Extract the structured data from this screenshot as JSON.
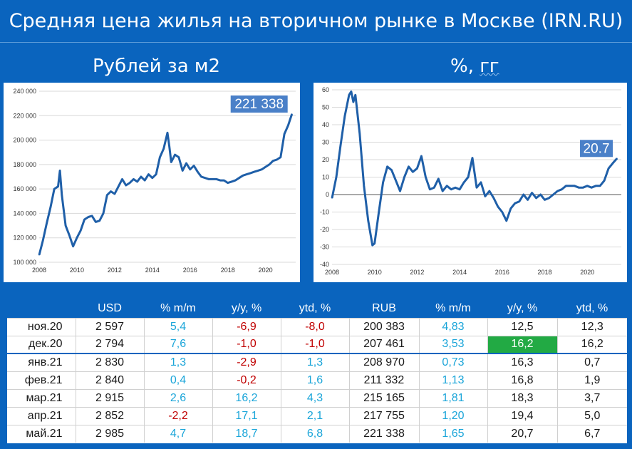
{
  "title": "Средняя цена жилья на вторичном рынке в Москве (IRN.RU)",
  "subtitle_left": "Рублей за м2",
  "subtitle_right_prefix": "%, ",
  "subtitle_right_unit": "гг",
  "colors": {
    "background": "#0a64be",
    "line": "#1f5fa8",
    "label_box": "#4a80c8",
    "positive": "#1aa5d9",
    "negative": "#c00000",
    "highlight": "#22aa44"
  },
  "chart_data": [
    {
      "type": "line",
      "title": "",
      "annotation": "221 338",
      "xlim": [
        2008,
        2021.6
      ],
      "ylim": [
        100000,
        240000
      ],
      "x_ticks": [
        "2008",
        "2010",
        "2012",
        "2014",
        "2016",
        "2018",
        "2020"
      ],
      "y_ticks": [
        "240 000",
        "220 000",
        "200 000",
        "180 000",
        "160 000",
        "140 000",
        "120 000",
        "100 000"
      ],
      "grid": true,
      "x": [
        2008.0,
        2008.2,
        2008.4,
        2008.6,
        2008.8,
        2009.0,
        2009.1,
        2009.2,
        2009.4,
        2009.6,
        2009.8,
        2010.0,
        2010.2,
        2010.4,
        2010.6,
        2010.8,
        2011.0,
        2011.2,
        2011.4,
        2011.6,
        2011.8,
        2012.0,
        2012.2,
        2012.4,
        2012.6,
        2012.8,
        2013.0,
        2013.2,
        2013.4,
        2013.6,
        2013.8,
        2014.0,
        2014.2,
        2014.4,
        2014.6,
        2014.8,
        2014.9,
        2015.0,
        2015.2,
        2015.4,
        2015.6,
        2015.8,
        2016.0,
        2016.2,
        2016.4,
        2016.6,
        2016.8,
        2017.0,
        2017.2,
        2017.4,
        2017.6,
        2017.8,
        2018.0,
        2018.2,
        2018.4,
        2018.6,
        2018.8,
        2019.0,
        2019.2,
        2019.4,
        2019.6,
        2019.8,
        2020.0,
        2020.2,
        2020.4,
        2020.6,
        2020.8,
        2021.0,
        2021.2,
        2021.4
      ],
      "y": [
        106000,
        118000,
        132000,
        145000,
        160000,
        162000,
        175000,
        155000,
        130000,
        122000,
        113000,
        120000,
        126000,
        135000,
        137000,
        138000,
        133000,
        134000,
        140000,
        155000,
        158000,
        156000,
        162000,
        168000,
        163000,
        165000,
        168000,
        166000,
        170000,
        167000,
        172000,
        169000,
        172000,
        186000,
        193000,
        206000,
        195000,
        182000,
        188000,
        186000,
        175000,
        181000,
        176000,
        179000,
        174000,
        170000,
        169000,
        168000,
        168000,
        168000,
        167000,
        167000,
        165000,
        166000,
        167000,
        169000,
        171000,
        172000,
        173000,
        174000,
        175000,
        176000,
        178000,
        180000,
        183000,
        184000,
        186000,
        205000,
        212000,
        221338
      ]
    },
    {
      "type": "line",
      "title": "",
      "annotation": "20.7",
      "xlim": [
        2008,
        2021.6
      ],
      "ylim": [
        -40,
        60
      ],
      "x_ticks": [
        "2008",
        "2010",
        "2012",
        "2014",
        "2016",
        "2018",
        "2020"
      ],
      "y_ticks": [
        "60",
        "50",
        "40",
        "30",
        "20",
        "10",
        "0",
        "-10",
        "-20",
        "-30",
        "-40"
      ],
      "grid": true,
      "x": [
        2008.0,
        2008.2,
        2008.4,
        2008.6,
        2008.8,
        2008.9,
        2009.0,
        2009.1,
        2009.3,
        2009.5,
        2009.7,
        2009.9,
        2010.0,
        2010.2,
        2010.4,
        2010.6,
        2010.8,
        2011.0,
        2011.2,
        2011.4,
        2011.6,
        2011.8,
        2012.0,
        2012.2,
        2012.4,
        2012.6,
        2012.8,
        2013.0,
        2013.2,
        2013.4,
        2013.6,
        2013.8,
        2014.0,
        2014.2,
        2014.4,
        2014.6,
        2014.8,
        2015.0,
        2015.2,
        2015.4,
        2015.6,
        2015.8,
        2016.0,
        2016.2,
        2016.4,
        2016.6,
        2016.8,
        2017.0,
        2017.2,
        2017.4,
        2017.6,
        2017.8,
        2018.0,
        2018.2,
        2018.4,
        2018.6,
        2018.8,
        2019.0,
        2019.2,
        2019.4,
        2019.6,
        2019.8,
        2020.0,
        2020.2,
        2020.4,
        2020.6,
        2020.8,
        2021.0,
        2021.2,
        2021.4
      ],
      "y": [
        -2,
        10,
        28,
        45,
        57,
        59,
        53,
        57,
        35,
        5,
        -15,
        -29,
        -28,
        -10,
        7,
        16,
        14,
        8,
        2,
        10,
        16,
        13,
        15,
        22,
        10,
        3,
        4,
        9,
        2,
        5,
        3,
        4,
        3,
        7,
        10,
        21,
        4,
        7,
        -1,
        2,
        -2,
        -7,
        -10,
        -15,
        -8,
        -5,
        -4,
        0,
        -3,
        1,
        -2,
        0,
        -3,
        -2,
        0,
        2,
        3,
        5,
        5,
        5,
        4,
        4,
        5,
        4,
        5,
        5,
        8,
        15,
        18,
        20.7
      ]
    }
  ],
  "table": {
    "headers": [
      "",
      "USD",
      "% m/m",
      "y/y, %",
      "ytd, %",
      "RUB",
      "% m/m",
      "y/y, %",
      "ytd, %"
    ],
    "rows": [
      {
        "month": "ноя.20",
        "usd": "2 597",
        "usd_mm": "5,4",
        "usd_yy": "-6,9",
        "usd_ytd": "-8,0",
        "rub": "200 383",
        "rub_mm": "4,83",
        "rub_yy": "12,5",
        "rub_ytd": "12,3"
      },
      {
        "month": "дек.20",
        "usd": "2 794",
        "usd_mm": "7,6",
        "usd_yy": "-1,0",
        "usd_ytd": "-1,0",
        "rub": "207 461",
        "rub_mm": "3,53",
        "rub_yy": "16,2",
        "rub_ytd": "16,2"
      },
      {
        "month": "янв.21",
        "usd": "2 830",
        "usd_mm": "1,3",
        "usd_yy": "-2,9",
        "usd_ytd": "1,3",
        "rub": "208 970",
        "rub_mm": "0,73",
        "rub_yy": "16,3",
        "rub_ytd": "0,7"
      },
      {
        "month": "фев.21",
        "usd": "2 840",
        "usd_mm": "0,4",
        "usd_yy": "-0,2",
        "usd_ytd": "1,6",
        "rub": "211 332",
        "rub_mm": "1,13",
        "rub_yy": "16,8",
        "rub_ytd": "1,9"
      },
      {
        "month": "мар.21",
        "usd": "2 915",
        "usd_mm": "2,6",
        "usd_yy": "16,2",
        "usd_ytd": "4,3",
        "rub": "215 165",
        "rub_mm": "1,81",
        "rub_yy": "18,3",
        "rub_ytd": "3,7"
      },
      {
        "month": "апр.21",
        "usd": "2 852",
        "usd_mm": "-2,2",
        "usd_yy": "17,1",
        "usd_ytd": "2,1",
        "rub": "217 755",
        "rub_mm": "1,20",
        "rub_yy": "19,4",
        "rub_ytd": "5,0"
      },
      {
        "month": "май.21",
        "usd": "2 985",
        "usd_mm": "4,7",
        "usd_yy": "18,7",
        "usd_ytd": "6,8",
        "rub": "221 338",
        "rub_mm": "1,65",
        "rub_yy": "20,7",
        "rub_ytd": "6,7"
      }
    ]
  }
}
